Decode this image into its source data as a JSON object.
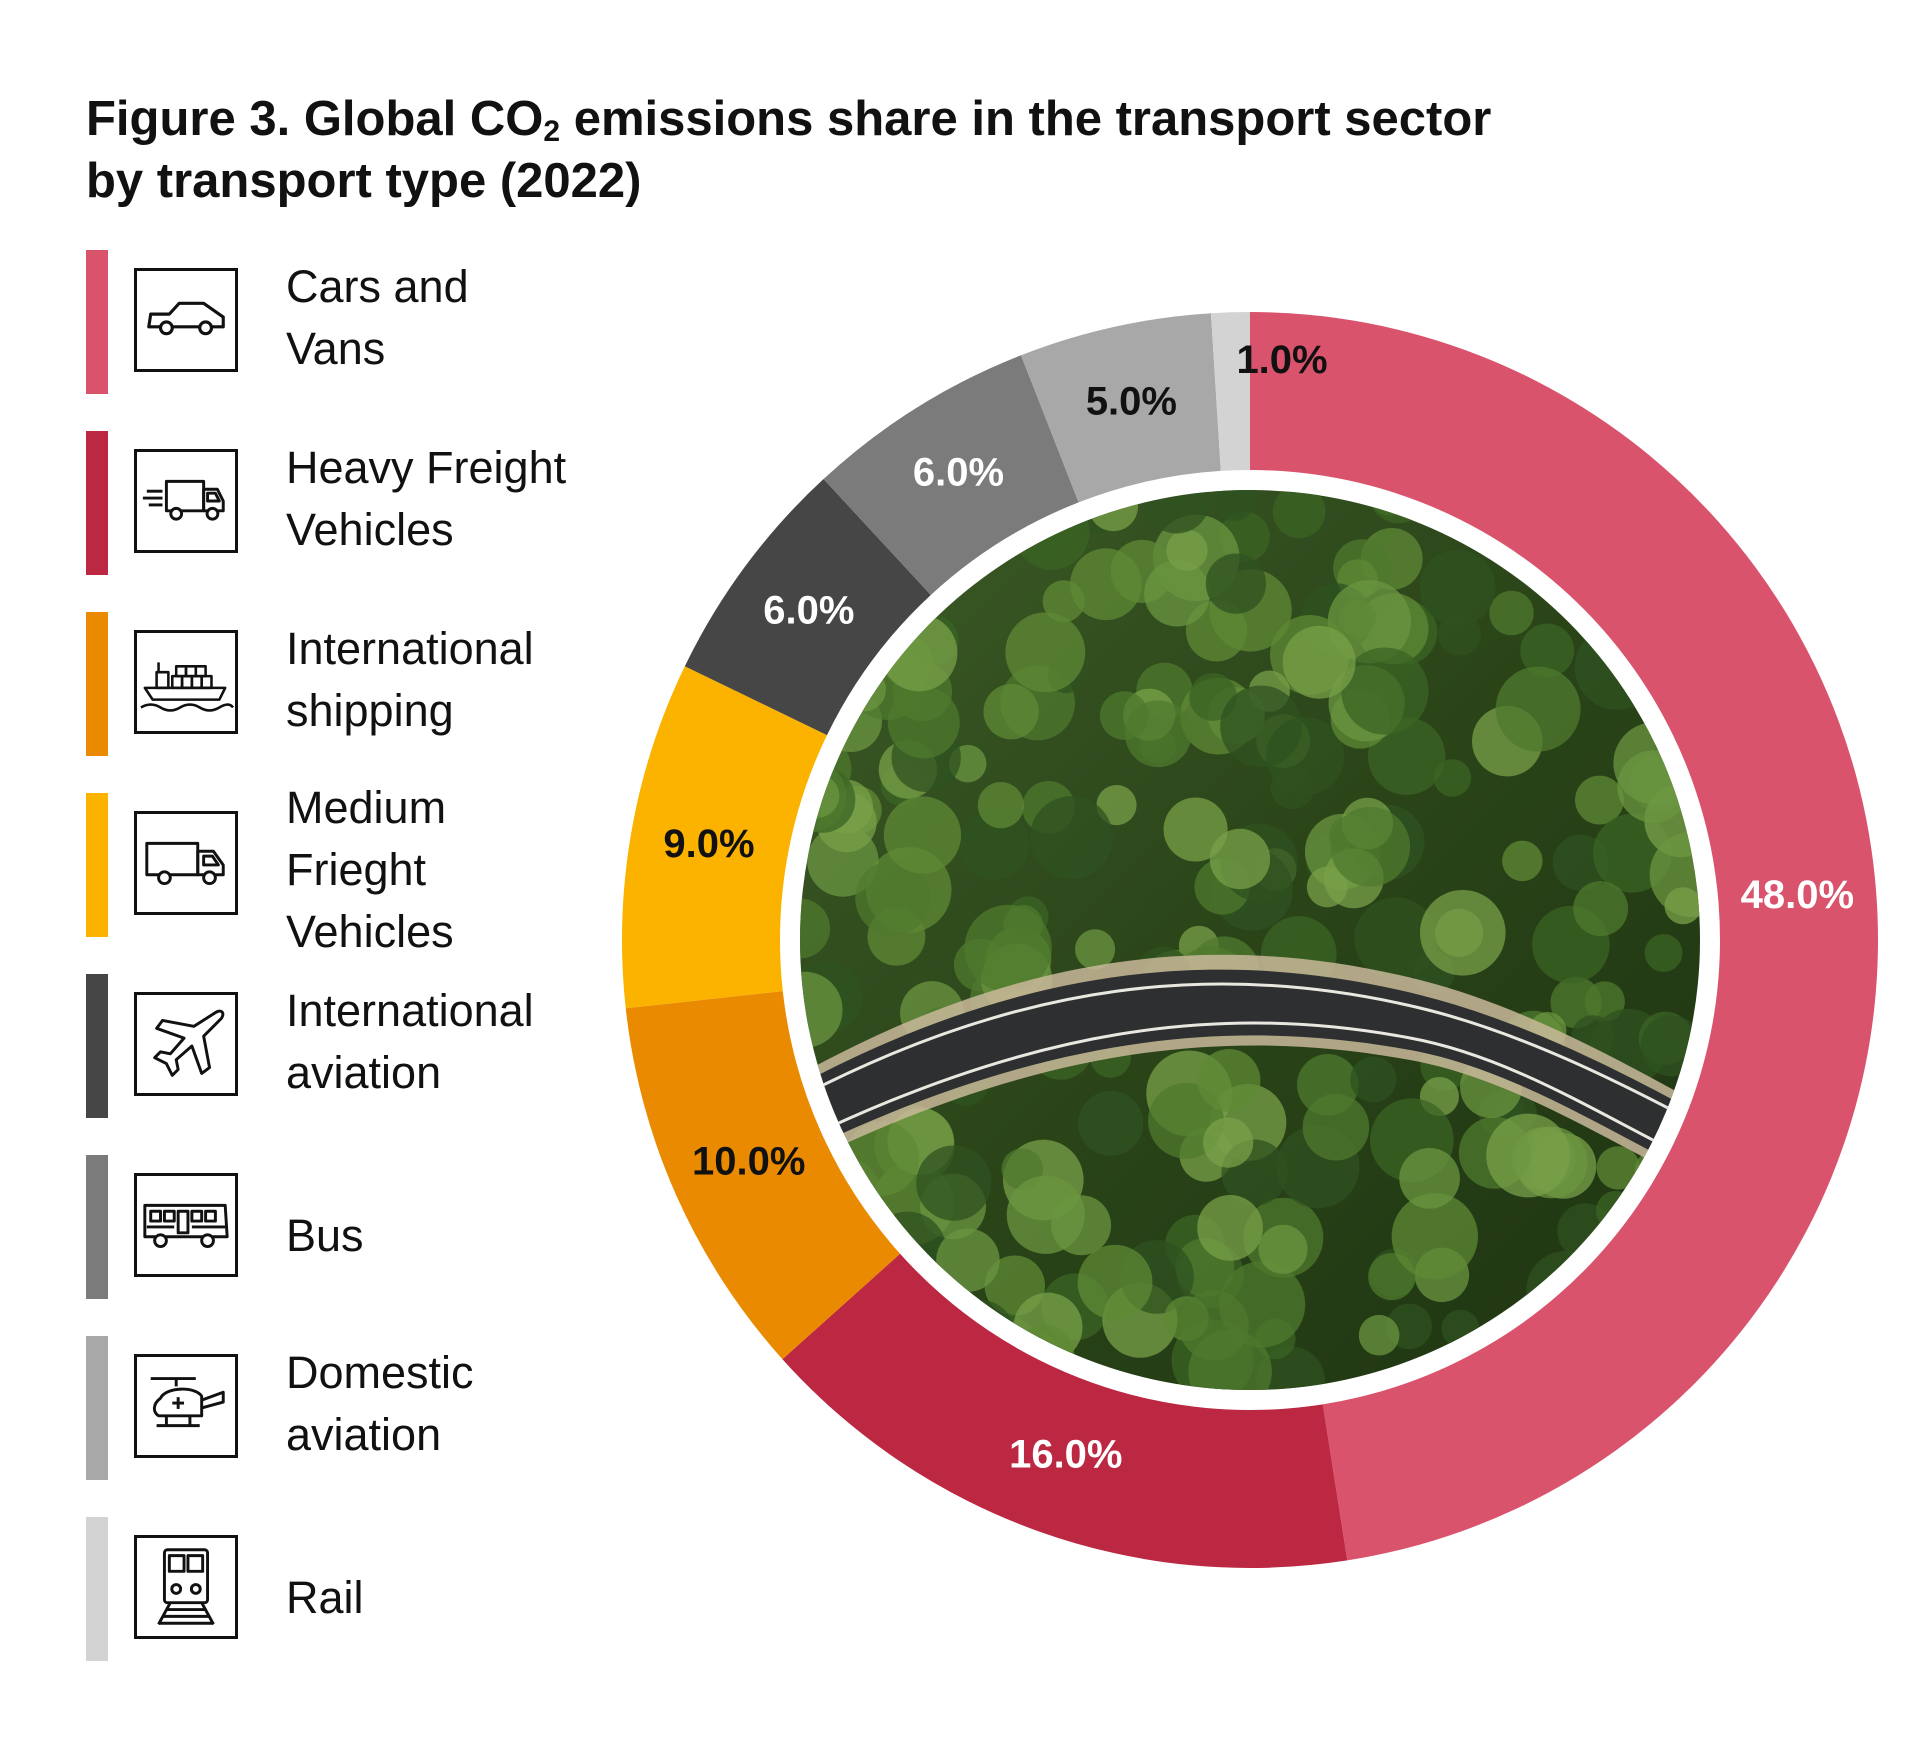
{
  "title": {
    "prefix": "Figure 3. Global CO",
    "subscript": "2",
    "suffix": " emissions share in the transport sector",
    "line2": "by transport type (2022)"
  },
  "legend": [
    {
      "label": "Cars and\nVans",
      "color": "#d9536c",
      "icon": "car-icon"
    },
    {
      "label": "Heavy Freight\nVehicles",
      "color": "#bc2742",
      "icon": "freight-truck-icon"
    },
    {
      "label": "International\nshipping",
      "color": "#e98a00",
      "icon": "cargo-ship-icon"
    },
    {
      "label": "Medium\nFrieght\nVehicles",
      "color": "#fbb300",
      "icon": "delivery-truck-icon"
    },
    {
      "label": "International\naviation",
      "color": "#464646",
      "icon": "airplane-icon"
    },
    {
      "label": "Bus",
      "color": "#7b7b7b",
      "icon": "bus-icon"
    },
    {
      "label": "Domestic\naviation",
      "color": "#a8a8a8",
      "icon": "helicopter-icon"
    },
    {
      "label": "Rail",
      "color": "#d3d3d3",
      "icon": "train-icon"
    }
  ],
  "chart_data": {
    "type": "pie",
    "donut": true,
    "categories": [
      "Cars and Vans",
      "Heavy Freight Vehicles",
      "International shipping",
      "Medium Frieght Vehicles",
      "International aviation",
      "Bus",
      "Domestic aviation",
      "Rail"
    ],
    "values": [
      48.0,
      16.0,
      10.0,
      9.0,
      6.0,
      6.0,
      5.0,
      1.0
    ],
    "labels": [
      "48.0%",
      "16.0%",
      "10.0%",
      "9.0%",
      "6.0%",
      "6.0%",
      "5.0%",
      "1.0%"
    ],
    "colors": [
      "#d9536c",
      "#bc2742",
      "#e98a00",
      "#fbb300",
      "#464646",
      "#7b7b7b",
      "#a8a8a8",
      "#d3d3d3"
    ],
    "label_colors": [
      "#ffffff",
      "#ffffff",
      "#111111",
      "#111111",
      "#ffffff",
      "#ffffff",
      "#111111",
      "#111111"
    ],
    "center_image": "aerial photo of a curved road through a green forest"
  }
}
